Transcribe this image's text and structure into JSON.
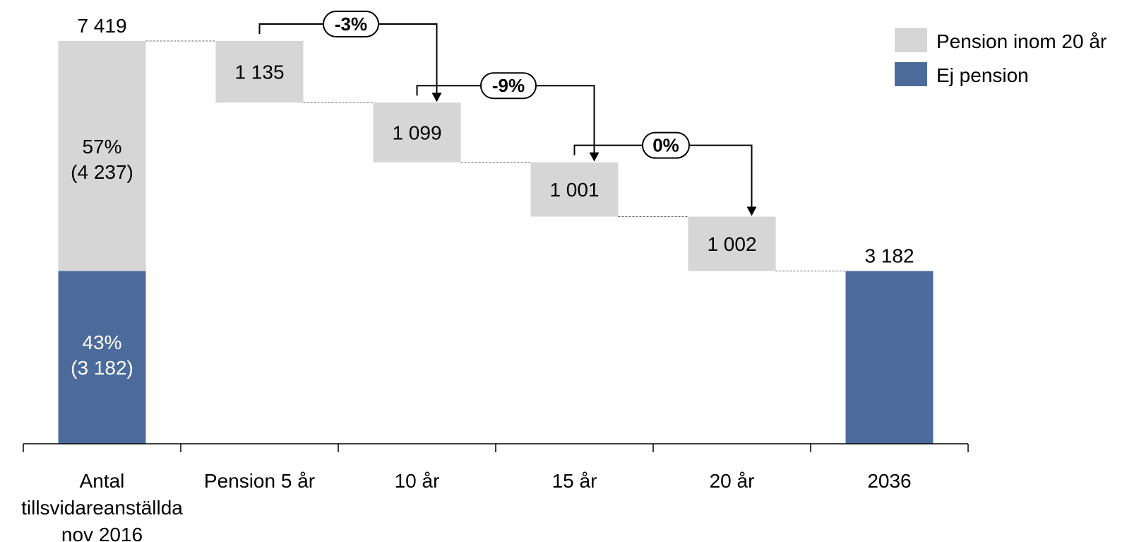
{
  "chart_data": {
    "type": "bar",
    "subtype": "waterfall",
    "categories": [
      "Antal tillsvidareanställda nov 2016",
      "Pension 5 år",
      "10 år",
      "15 år",
      "20 år",
      "2036"
    ],
    "category_lines": [
      [
        "Antal",
        "tillsvidareanställda",
        "nov 2016"
      ],
      [
        "Pension 5 år"
      ],
      [
        "10 år"
      ],
      [
        "15 år"
      ],
      [
        "20 år"
      ],
      [
        "2036"
      ]
    ],
    "ylim": [
      0,
      7419
    ],
    "grid": false,
    "legend_position": "top-right",
    "series": [
      {
        "name": "Ej pension",
        "color": "#4C6B9A",
        "values": [
          3182,
          0,
          0,
          0,
          0,
          3182
        ]
      },
      {
        "name": "Pension inom 20 år",
        "color": "#D6D6D6",
        "values": [
          4237,
          1135,
          1099,
          1001,
          1002,
          0
        ]
      }
    ],
    "start_total": {
      "value": 7419,
      "label": "7 419"
    },
    "end_total": {
      "value": 3182,
      "label": "3 182"
    },
    "start_segments": [
      {
        "series": "Pension inom 20 år",
        "value": 4237,
        "label_pct": "57%",
        "label_abs": "(4 237)"
      },
      {
        "series": "Ej pension",
        "value": 3182,
        "label_pct": "43%",
        "label_abs": "(3 182)"
      }
    ],
    "steps": [
      {
        "category": "Pension 5 år",
        "value": 1135,
        "label": "1 135"
      },
      {
        "category": "10 år",
        "value": 1099,
        "label": "1 099"
      },
      {
        "category": "15 år",
        "value": 1001,
        "label": "1 001"
      },
      {
        "category": "20 år",
        "value": 1002,
        "label": "1 002"
      }
    ],
    "changes": [
      {
        "from": "Pension 5 år",
        "to": "10 år",
        "label": "-3%"
      },
      {
        "from": "10 år",
        "to": "15 år",
        "label": "-9%"
      },
      {
        "from": "15 år",
        "to": "20 år",
        "label": "0%"
      }
    ],
    "legend": [
      {
        "label": "Pension inom 20 år",
        "color": "#D6D6D6"
      },
      {
        "label": "Ej pension",
        "color": "#4C6B9A"
      }
    ]
  }
}
